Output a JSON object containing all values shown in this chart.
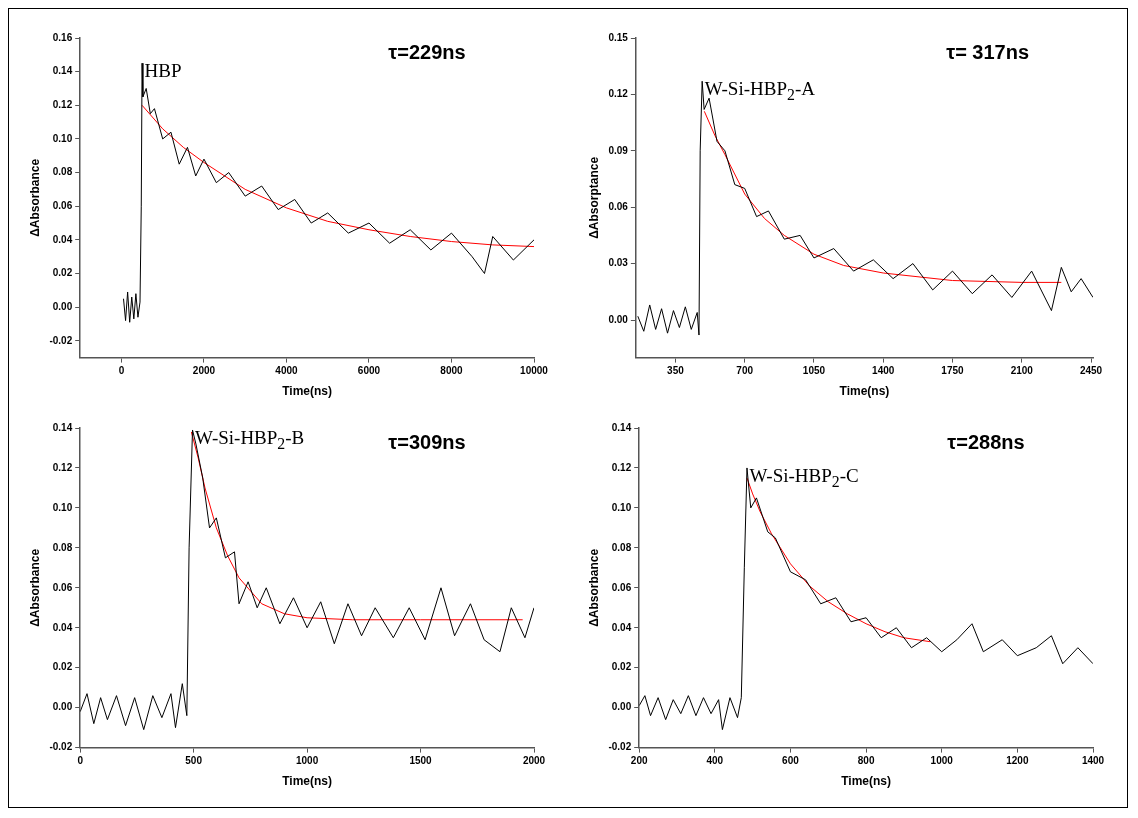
{
  "chart_data": [
    {
      "type": "line",
      "xlabel": "Time(ns)",
      "ylabel": "ΔAbsorbance",
      "annotations": [
        "HBP",
        "τ=229ns"
      ],
      "xlim": [
        -1000,
        10000
      ],
      "ylim": [
        -0.03,
        0.16
      ],
      "xticks": [
        0,
        2000,
        4000,
        6000,
        8000,
        10000
      ],
      "yticks": [
        {
          "value": -0.02,
          "label": "-0.02"
        },
        {
          "value": 0,
          "label": "0.00"
        },
        {
          "value": 0.02,
          "label": "0.02"
        },
        {
          "value": 0.04,
          "label": "0.04"
        },
        {
          "value": 0.06,
          "label": "0.06"
        },
        {
          "value": 0.08,
          "label": "0.08"
        },
        {
          "value": 0.1,
          "label": "0.10"
        },
        {
          "value": 0.12,
          "label": "0.12"
        },
        {
          "value": 0.14,
          "label": "0.14"
        },
        {
          "value": 0.16,
          "label": "0.16"
        }
      ],
      "grid": false,
      "legend": false,
      "marker": "none",
      "series": [
        {
          "color": "#000000",
          "x": [
            50,
            100,
            150,
            200,
            250,
            300,
            350,
            400,
            450,
            480,
            500,
            520,
            600,
            700,
            800,
            1000,
            1200,
            1400,
            1600,
            1800,
            2000,
            2300,
            2600,
            3000,
            3400,
            3800,
            4200,
            4600,
            5000,
            5500,
            6000,
            6500,
            7000,
            7500,
            8000,
            8500,
            8800,
            9000,
            9500,
            10000
          ],
          "values": [
            0.005,
            -0.008,
            0.009,
            -0.009,
            0.006,
            -0.007,
            0.008,
            -0.006,
            0.003,
            0.06,
            0.145,
            0.125,
            0.13,
            0.115,
            0.118,
            0.1,
            0.104,
            0.085,
            0.095,
            0.078,
            0.088,
            0.074,
            0.08,
            0.066,
            0.072,
            0.058,
            0.064,
            0.05,
            0.056,
            0.044,
            0.05,
            0.038,
            0.046,
            0.034,
            0.044,
            0.03,
            0.02,
            0.042,
            0.028,
            0.04
          ]
        },
        {
          "color": "#ff0000",
          "x": [
            500,
            1000,
            1500,
            2000,
            3000,
            4000,
            5000,
            6000,
            7000,
            8000,
            9000,
            10000
          ],
          "values": [
            0.12,
            0.106,
            0.095,
            0.086,
            0.07,
            0.059,
            0.051,
            0.046,
            0.042,
            0.039,
            0.037,
            0.036
          ]
        }
      ]
    },
    {
      "type": "line",
      "xlabel": "Time(ns)",
      "ylabel": "ΔAbsorptance",
      "annotations": [
        "W-Si-HBP$_{2}$-A",
        "τ= 317ns"
      ],
      "xlim": [
        150,
        2460
      ],
      "ylim": [
        -0.02,
        0.15
      ],
      "xticks": [
        350,
        700,
        1050,
        1400,
        1750,
        2100,
        2450
      ],
      "yticks": [
        {
          "value": 0,
          "label": "0.00"
        },
        {
          "value": 0.03,
          "label": "0.03"
        },
        {
          "value": 0.06,
          "label": "0.06"
        },
        {
          "value": 0.09,
          "label": "0.09"
        },
        {
          "value": 0.12,
          "label": "0.12"
        },
        {
          "value": 0.15,
          "label": "0.15"
        }
      ],
      "grid": false,
      "legend": false,
      "marker": "none",
      "series": [
        {
          "color": "#000000",
          "x": [
            160,
            190,
            220,
            250,
            280,
            310,
            340,
            370,
            400,
            430,
            460,
            469,
            475,
            485,
            495,
            520,
            560,
            600,
            650,
            700,
            760,
            820,
            900,
            980,
            1050,
            1150,
            1250,
            1350,
            1450,
            1550,
            1650,
            1750,
            1850,
            1950,
            2050,
            2150,
            2250,
            2300,
            2350,
            2400,
            2460
          ],
          "values": [
            0.002,
            -0.006,
            0.008,
            -0.005,
            0.006,
            -0.007,
            0.005,
            -0.004,
            0.007,
            -0.005,
            0.004,
            -0.008,
            0.09,
            0.127,
            0.112,
            0.118,
            0.095,
            0.09,
            0.072,
            0.07,
            0.055,
            0.058,
            0.043,
            0.045,
            0.033,
            0.038,
            0.026,
            0.032,
            0.022,
            0.03,
            0.016,
            0.026,
            0.014,
            0.024,
            0.012,
            0.026,
            0.005,
            0.028,
            0.015,
            0.022,
            0.012
          ]
        },
        {
          "color": "#ff0000",
          "x": [
            496,
            550,
            600,
            700,
            800,
            900,
            1050,
            1200,
            1400,
            1750,
            2100,
            2300
          ],
          "values": [
            0.111,
            0.098,
            0.088,
            0.067,
            0.054,
            0.045,
            0.035,
            0.029,
            0.025,
            0.021,
            0.02,
            0.02
          ]
        }
      ]
    },
    {
      "type": "line",
      "xlabel": "Time(ns)",
      "ylabel": "ΔAbsorbance",
      "annotations": [
        "W-Si-HBP$_{2}$-B",
        "τ=309ns"
      ],
      "xlim": [
        0,
        2000
      ],
      "ylim": [
        -0.02,
        0.14
      ],
      "xticks": [
        0,
        500,
        1000,
        1500,
        2000
      ],
      "yticks": [
        {
          "value": -0.02,
          "label": "-0.02"
        },
        {
          "value": 0,
          "label": "0.00"
        },
        {
          "value": 0.02,
          "label": "0.02"
        },
        {
          "value": 0.04,
          "label": "0.04"
        },
        {
          "value": 0.06,
          "label": "0.06"
        },
        {
          "value": 0.08,
          "label": "0.08"
        },
        {
          "value": 0.1,
          "label": "0.10"
        },
        {
          "value": 0.12,
          "label": "0.12"
        },
        {
          "value": 0.14,
          "label": "0.14"
        }
      ],
      "grid": false,
      "legend": false,
      "marker": "none",
      "series": [
        {
          "color": "#000000",
          "x": [
            0,
            30,
            60,
            90,
            120,
            160,
            200,
            240,
            280,
            320,
            360,
            400,
            420,
            450,
            470,
            480,
            495,
            510,
            540,
            570,
            600,
            640,
            680,
            700,
            740,
            780,
            820,
            880,
            940,
            1000,
            1060,
            1120,
            1180,
            1240,
            1300,
            1380,
            1450,
            1520,
            1590,
            1650,
            1720,
            1780,
            1850,
            1900,
            1960,
            2000
          ],
          "values": [
            -0.002,
            0.007,
            -0.008,
            0.005,
            -0.006,
            0.006,
            -0.009,
            0.005,
            -0.011,
            0.006,
            -0.005,
            0.007,
            -0.01,
            0.012,
            -0.004,
            0.08,
            0.139,
            0.132,
            0.115,
            0.09,
            0.095,
            0.075,
            0.078,
            0.052,
            0.063,
            0.05,
            0.06,
            0.042,
            0.055,
            0.04,
            0.053,
            0.032,
            0.052,
            0.036,
            0.05,
            0.035,
            0.05,
            0.034,
            0.06,
            0.036,
            0.052,
            0.034,
            0.028,
            0.05,
            0.035,
            0.05
          ]
        },
        {
          "color": "#ff0000",
          "x": [
            490,
            520,
            550,
            600,
            650,
            700,
            800,
            900,
            1000,
            1200,
            1500,
            1950
          ],
          "values": [
            0.138,
            0.125,
            0.11,
            0.09,
            0.076,
            0.065,
            0.052,
            0.047,
            0.045,
            0.044,
            0.044,
            0.044
          ]
        }
      ]
    },
    {
      "type": "line",
      "xlabel": "Time(ns)",
      "ylabel": "ΔAbsorbance",
      "annotations": [
        "W-Si-HBP$_{2}$-C",
        "τ=288ns"
      ],
      "xlim": [
        200,
        1400
      ],
      "ylim": [
        -0.02,
        0.14
      ],
      "xticks": [
        200,
        400,
        600,
        800,
        1000,
        1200,
        1400
      ],
      "yticks": [
        {
          "value": -0.02,
          "label": "-0.02"
        },
        {
          "value": 0,
          "label": "0.00"
        },
        {
          "value": 0.02,
          "label": "0.02"
        },
        {
          "value": 0.04,
          "label": "0.04"
        },
        {
          "value": 0.06,
          "label": "0.06"
        },
        {
          "value": 0.08,
          "label": "0.08"
        },
        {
          "value": 0.1,
          "label": "0.10"
        },
        {
          "value": 0.12,
          "label": "0.12"
        },
        {
          "value": 0.14,
          "label": "0.14"
        }
      ],
      "grid": false,
      "legend": false,
      "marker": "none",
      "series": [
        {
          "color": "#000000",
          "x": [
            200,
            215,
            230,
            250,
            270,
            290,
            310,
            330,
            350,
            370,
            390,
            410,
            420,
            440,
            460,
            470,
            478,
            485,
            495,
            510,
            540,
            560,
            600,
            640,
            680,
            720,
            760,
            800,
            840,
            880,
            920,
            960,
            1000,
            1040,
            1080,
            1110,
            1160,
            1200,
            1250,
            1290,
            1320,
            1360,
            1400
          ],
          "values": [
            0.001,
            0.006,
            -0.004,
            0.005,
            -0.006,
            0.004,
            -0.003,
            0.006,
            -0.004,
            0.005,
            -0.003,
            0.004,
            -0.011,
            0.005,
            -0.005,
            0.005,
            0.07,
            0.12,
            0.1,
            0.105,
            0.088,
            0.085,
            0.068,
            0.064,
            0.052,
            0.055,
            0.043,
            0.045,
            0.035,
            0.04,
            0.03,
            0.035,
            0.028,
            0.034,
            0.042,
            0.028,
            0.034,
            0.026,
            0.03,
            0.036,
            0.022,
            0.03,
            0.022
          ]
        },
        {
          "color": "#ff0000",
          "x": [
            485,
            500,
            520,
            550,
            600,
            650,
            700,
            750,
            800,
            850,
            900,
            970
          ],
          "values": [
            0.115,
            0.107,
            0.098,
            0.087,
            0.072,
            0.061,
            0.053,
            0.047,
            0.042,
            0.038,
            0.035,
            0.033
          ]
        }
      ]
    }
  ]
}
